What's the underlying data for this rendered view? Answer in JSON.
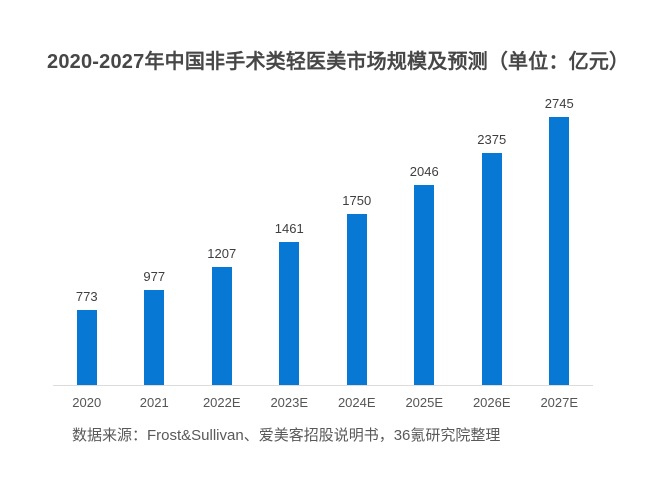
{
  "chart_data": {
    "type": "bar",
    "title": "2020-2027年中国非手术类轻医美市场规模及预测（单位：亿元）",
    "categories": [
      "2020",
      "2021",
      "2022E",
      "2023E",
      "2024E",
      "2025E",
      "2026E",
      "2027E"
    ],
    "values": [
      773,
      977,
      1207,
      1461,
      1750,
      2046,
      2375,
      2745
    ],
    "xlabel": "",
    "ylabel": "",
    "ylim": [
      0,
      3000
    ],
    "grid": false,
    "legend_position": "none",
    "bar_color": "#0778d4",
    "axis_line_color": "#dcdcdc",
    "source": "数据来源：Frost&Sullivan、爱美客招股说明书，36氪研究院整理"
  }
}
